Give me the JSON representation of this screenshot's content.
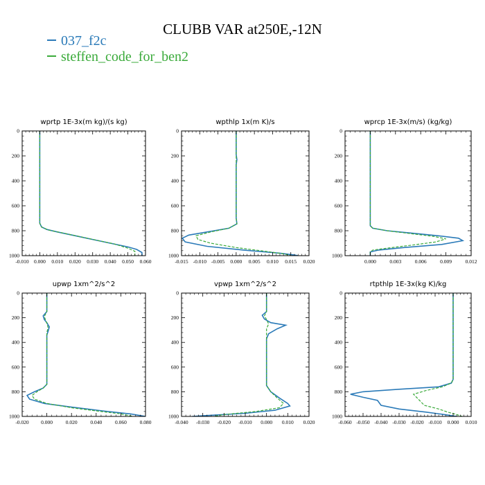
{
  "title": "CLUBB VAR at250E,-12N",
  "legend": [
    {
      "label": "037_f2c",
      "color": "#2a7ab8"
    },
    {
      "label": "steffen_code_for_ben2",
      "color": "#3aaa3a"
    }
  ],
  "chart_data": [
    {
      "type": "line",
      "title": "wprtp  1E-3x(m kg)/(s kg)",
      "xlim": [
        -0.01,
        0.06
      ],
      "ylim": [
        0,
        1000
      ],
      "y_inverted": true,
      "xticks": [
        -0.01,
        0.0,
        0.01,
        0.02,
        0.03,
        0.04,
        0.05,
        0.06
      ],
      "xtick_labels": [
        "-0.010",
        "0.000",
        "0.010",
        "0.020",
        "0.030",
        "0.040",
        "0.050",
        "0.060"
      ],
      "yticks": [
        0,
        200,
        400,
        600,
        800,
        1000
      ],
      "series": [
        {
          "name": "037_f2c",
          "color": "#2a7ab8",
          "dashed": false,
          "points": [
            [
              0,
              0
            ],
            [
              0,
              200
            ],
            [
              0,
              400
            ],
            [
              0,
              600
            ],
            [
              0,
              740
            ],
            [
              0.001,
              770
            ],
            [
              0.004,
              790
            ],
            [
              0.01,
              810
            ],
            [
              0.02,
              840
            ],
            [
              0.03,
              870
            ],
            [
              0.04,
              900
            ],
            [
              0.05,
              930
            ],
            [
              0.055,
              950
            ],
            [
              0.058,
              975
            ],
            [
              0.058,
              1000
            ]
          ]
        },
        {
          "name": "steffen_code_for_ben2",
          "color": "#3aaa3a",
          "dashed": true,
          "points": [
            [
              0,
              0
            ],
            [
              0,
              200
            ],
            [
              0,
              400
            ],
            [
              0,
              600
            ],
            [
              0,
              740
            ],
            [
              0.001,
              770
            ],
            [
              0.005,
              795
            ],
            [
              0.012,
              815
            ],
            [
              0.022,
              845
            ],
            [
              0.032,
              875
            ],
            [
              0.042,
              905
            ],
            [
              0.05,
              940
            ],
            [
              0.054,
              965
            ],
            [
              0.054,
              1000
            ]
          ]
        }
      ]
    },
    {
      "type": "line",
      "title": "wpthlp  1x(m K)/s",
      "xlim": [
        -0.015,
        0.02
      ],
      "ylim": [
        0,
        1000
      ],
      "y_inverted": true,
      "xticks": [
        -0.015,
        -0.01,
        -0.005,
        0.0,
        0.005,
        0.01,
        0.015,
        0.02
      ],
      "xtick_labels": [
        "-0.015",
        "-0.010",
        "-0.005",
        "0.000",
        "0.005",
        "0.010",
        "0.015",
        "0.020"
      ],
      "yticks": [
        0,
        200,
        400,
        600,
        800,
        1000
      ],
      "series": [
        {
          "name": "037_f2c",
          "color": "#2a7ab8",
          "dashed": false,
          "points": [
            [
              0,
              0
            ],
            [
              0,
              190
            ],
            [
              0.0002,
              230
            ],
            [
              0,
              270
            ],
            [
              0,
              500
            ],
            [
              0,
              700
            ],
            [
              0.0002,
              745
            ],
            [
              -0.002,
              780
            ],
            [
              -0.008,
              810
            ],
            [
              -0.013,
              835
            ],
            [
              -0.0148,
              860
            ],
            [
              -0.014,
              890
            ],
            [
              -0.008,
              925
            ],
            [
              0.002,
              955
            ],
            [
              0.012,
              980
            ],
            [
              0.016,
              995
            ],
            [
              0.017,
              1000
            ]
          ]
        },
        {
          "name": "steffen_code_for_ben2",
          "color": "#3aaa3a",
          "dashed": true,
          "points": [
            [
              0,
              0
            ],
            [
              0,
              200
            ],
            [
              0,
              500
            ],
            [
              0,
              700
            ],
            [
              0.0002,
              745
            ],
            [
              -0.002,
              780
            ],
            [
              -0.007,
              810
            ],
            [
              -0.011,
              840
            ],
            [
              -0.0105,
              870
            ],
            [
              -0.007,
              900
            ],
            [
              0.0,
              935
            ],
            [
              0.008,
              965
            ],
            [
              0.013,
              985
            ],
            [
              0.015,
              1000
            ]
          ]
        }
      ]
    },
    {
      "type": "line",
      "title": "wprcp  1E-3x(m/s) (kg/kg)",
      "xlim": [
        -0.003,
        0.012
      ],
      "ylim": [
        0,
        1000
      ],
      "y_inverted": true,
      "xticks": [
        0.0,
        0.003,
        0.006,
        0.009,
        0.012
      ],
      "xtick_labels": [
        "0.000",
        "0.003",
        "0.006",
        "0.009",
        "0.012"
      ],
      "yticks": [
        0,
        200,
        400,
        600,
        800,
        1000
      ],
      "series": [
        {
          "name": "037_f2c",
          "color": "#2a7ab8",
          "dashed": false,
          "points": [
            [
              0,
              0
            ],
            [
              0,
              300
            ],
            [
              0,
              600
            ],
            [
              0,
              760
            ],
            [
              0.0003,
              780
            ],
            [
              0.002,
              800
            ],
            [
              0.005,
              820
            ],
            [
              0.008,
              840
            ],
            [
              0.0105,
              860
            ],
            [
              0.011,
              880
            ],
            [
              0.0085,
              910
            ],
            [
              0.004,
              935
            ],
            [
              0.001,
              955
            ],
            [
              0,
              970
            ],
            [
              0,
              1000
            ]
          ]
        },
        {
          "name": "steffen_code_for_ben2",
          "color": "#3aaa3a",
          "dashed": true,
          "points": [
            [
              0,
              0
            ],
            [
              0,
              300
            ],
            [
              0,
              600
            ],
            [
              0,
              760
            ],
            [
              0.0003,
              780
            ],
            [
              0.002,
              800
            ],
            [
              0.005,
              825
            ],
            [
              0.0075,
              845
            ],
            [
              0.009,
              865
            ],
            [
              0.0078,
              890
            ],
            [
              0.005,
              915
            ],
            [
              0.002,
              940
            ],
            [
              0.0003,
              955
            ],
            [
              0,
              970
            ],
            [
              0,
              1000
            ]
          ]
        }
      ]
    },
    {
      "type": "line",
      "title": "upwp  1xm^2/s^2",
      "xlim": [
        -0.02,
        0.08
      ],
      "ylim": [
        0,
        1000
      ],
      "y_inverted": true,
      "xticks": [
        -0.02,
        0.0,
        0.02,
        0.04,
        0.06,
        0.08
      ],
      "xtick_labels": [
        "-0.020",
        "0.000",
        "0.020",
        "0.040",
        "0.060",
        "0.080"
      ],
      "yticks": [
        0,
        200,
        400,
        600,
        800,
        1000
      ],
      "series": [
        {
          "name": "037_f2c",
          "color": "#2a7ab8",
          "dashed": false,
          "points": [
            [
              0,
              0
            ],
            [
              0,
              150
            ],
            [
              -0.003,
              185
            ],
            [
              -0.002,
              215
            ],
            [
              0,
              240
            ],
            [
              0.002,
              275
            ],
            [
              0.001,
              310
            ],
            [
              0,
              340
            ],
            [
              0,
              600
            ],
            [
              0,
              740
            ],
            [
              -0.003,
              770
            ],
            [
              -0.01,
              800
            ],
            [
              -0.016,
              830
            ],
            [
              -0.014,
              860
            ],
            [
              -0.002,
              895
            ],
            [
              0.02,
              925
            ],
            [
              0.045,
              955
            ],
            [
              0.068,
              980
            ],
            [
              0.08,
              1000
            ]
          ]
        },
        {
          "name": "steffen_code_for_ben2",
          "color": "#3aaa3a",
          "dashed": true,
          "points": [
            [
              0,
              0
            ],
            [
              0,
              150
            ],
            [
              -0.002,
              190
            ],
            [
              -0.001,
              220
            ],
            [
              0,
              245
            ],
            [
              0.001,
              280
            ],
            [
              0,
              320
            ],
            [
              0,
              600
            ],
            [
              0,
              740
            ],
            [
              -0.003,
              770
            ],
            [
              -0.008,
              800
            ],
            [
              -0.012,
              830
            ],
            [
              -0.01,
              860
            ],
            [
              0.0,
              895
            ],
            [
              0.02,
              930
            ],
            [
              0.04,
              955
            ],
            [
              0.06,
              980
            ],
            [
              0.07,
              1000
            ]
          ]
        }
      ]
    },
    {
      "type": "line",
      "title": "vpwp  1xm^2/s^2",
      "xlim": [
        -0.04,
        0.02
      ],
      "ylim": [
        0,
        1000
      ],
      "y_inverted": true,
      "xticks": [
        -0.04,
        -0.03,
        -0.02,
        -0.01,
        0.0,
        0.01,
        0.02
      ],
      "xtick_labels": [
        "-0.040",
        "-0.030",
        "-0.020",
        "-0.010",
        "0.000",
        "0.010",
        "0.020"
      ],
      "yticks": [
        0,
        200,
        400,
        600,
        800,
        1000
      ],
      "series": [
        {
          "name": "037_f2c",
          "color": "#2a7ab8",
          "dashed": false,
          "points": [
            [
              0,
              0
            ],
            [
              0,
              150
            ],
            [
              -0.002,
              180
            ],
            [
              -0.001,
              210
            ],
            [
              0.002,
              240
            ],
            [
              0.009,
              260
            ],
            [
              0.005,
              290
            ],
            [
              0.001,
              330
            ],
            [
              0,
              370
            ],
            [
              0,
              600
            ],
            [
              0,
              750
            ],
            [
              0.002,
              800
            ],
            [
              0.006,
              850
            ],
            [
              0.01,
              895
            ],
            [
              0.011,
              915
            ],
            [
              0.004,
              950
            ],
            [
              -0.01,
              975
            ],
            [
              -0.03,
              995
            ],
            [
              -0.035,
              1000
            ]
          ]
        },
        {
          "name": "steffen_code_for_ben2",
          "color": "#3aaa3a",
          "dashed": true,
          "points": [
            [
              0,
              0
            ],
            [
              0,
              150
            ],
            [
              -0.001,
              185
            ],
            [
              0,
              215
            ],
            [
              0.001,
              250
            ],
            [
              0,
              290
            ],
            [
              0,
              600
            ],
            [
              0,
              750
            ],
            [
              0.002,
              800
            ],
            [
              0.005,
              850
            ],
            [
              0.008,
              895
            ],
            [
              0.006,
              930
            ],
            [
              -0.005,
              960
            ],
            [
              -0.02,
              985
            ],
            [
              -0.025,
              1000
            ]
          ]
        }
      ]
    },
    {
      "type": "line",
      "title": "rtpthlp  1E-3x(kg K)/kg",
      "xlim": [
        -0.06,
        0.01
      ],
      "ylim": [
        0,
        1000
      ],
      "y_inverted": true,
      "xticks": [
        -0.06,
        -0.05,
        -0.04,
        -0.03,
        -0.02,
        -0.01,
        0.0,
        0.01
      ],
      "xtick_labels": [
        "-0.060",
        "-0.050",
        "-0.040",
        "-0.030",
        "-0.020",
        "-0.010",
        "0.000",
        "0.010"
      ],
      "yticks": [
        0,
        200,
        400,
        600,
        800,
        1000
      ],
      "series": [
        {
          "name": "037_f2c",
          "color": "#2a7ab8",
          "dashed": false,
          "points": [
            [
              0,
              0
            ],
            [
              0,
              300
            ],
            [
              0,
              600
            ],
            [
              0,
              700
            ],
            [
              -0.001,
              730
            ],
            [
              -0.008,
              760
            ],
            [
              -0.03,
              780
            ],
            [
              -0.05,
              800
            ],
            [
              -0.057,
              820
            ],
            [
              -0.05,
              845
            ],
            [
              -0.042,
              870
            ],
            [
              -0.04,
              910
            ],
            [
              -0.03,
              940
            ],
            [
              -0.015,
              965
            ],
            [
              -0.005,
              985
            ],
            [
              0.002,
              1000
            ]
          ]
        },
        {
          "name": "steffen_code_for_ben2",
          "color": "#3aaa3a",
          "dashed": true,
          "points": [
            [
              0,
              0
            ],
            [
              0,
              300
            ],
            [
              0,
              600
            ],
            [
              0,
              700
            ],
            [
              -0.001,
              730
            ],
            [
              -0.006,
              760
            ],
            [
              -0.015,
              790
            ],
            [
              -0.022,
              820
            ],
            [
              -0.02,
              850
            ],
            [
              -0.018,
              880
            ],
            [
              -0.016,
              910
            ],
            [
              -0.008,
              940
            ],
            [
              -0.003,
              965
            ],
            [
              0.002,
              985
            ],
            [
              0.005,
              1000
            ]
          ]
        }
      ]
    }
  ]
}
